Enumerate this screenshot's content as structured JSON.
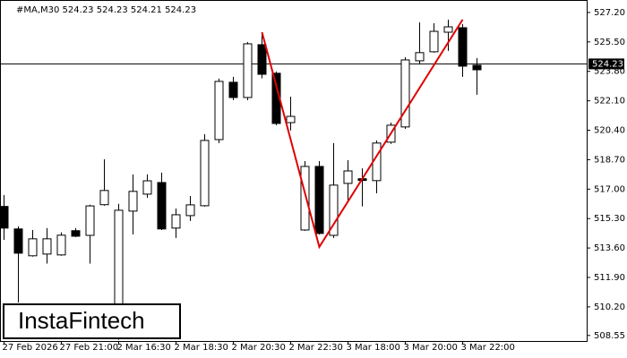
{
  "chart_data": {
    "type": "candlestick",
    "title": "#MA,M30  524.23 524.23 524.21 524.23",
    "categories": [
      "27 Feb 2026",
      null,
      null,
      null,
      "27 Feb 21:00",
      null,
      null,
      null,
      "2 Mar 16:30",
      null,
      null,
      null,
      "2 Mar 18:30",
      null,
      null,
      null,
      "2 Mar 20:30",
      null,
      null,
      null,
      "2 Mar 22:30",
      null,
      null,
      null,
      "3 Mar 18:00",
      null,
      null,
      null,
      "3 Mar 20:00",
      null,
      null,
      null,
      "3 Mar 22:00",
      null
    ],
    "open": [
      516.0,
      514.7,
      513.15,
      513.25,
      513.2,
      514.6,
      514.33,
      516.1,
      508.5,
      515.73,
      516.71,
      517.38,
      514.75,
      515.47,
      516.04,
      519.86,
      523.17,
      522.29,
      525.34,
      523.69,
      520.84,
      514.64,
      518.31,
      514.33,
      517.33,
      517.6,
      517.49,
      519.71,
      520.59,
      524.41,
      524.93,
      526.06,
      526.32,
      524.15
    ],
    "high": [
      516.66,
      514.85,
      514.64,
      514.75,
      514.5,
      514.75,
      516.1,
      518.72,
      516.15,
      517.85,
      517.85,
      517.95,
      515.88,
      516.6,
      520.17,
      523.38,
      523.48,
      525.49,
      526.0,
      523.79,
      522.34,
      518.62,
      518.62,
      519.66,
      518.67,
      518.2,
      519.81,
      520.84,
      524.62,
      526.63,
      526.58,
      526.79,
      526.53,
      524.57
    ],
    "low": [
      514.07,
      510.45,
      513.1,
      512.7,
      513.15,
      514.23,
      512.7,
      516.04,
      508.3,
      514.38,
      516.5,
      514.64,
      514.18,
      515.16,
      515.99,
      519.66,
      522.14,
      522.14,
      523.4,
      520.69,
      520.38,
      514.59,
      514.38,
      514.18,
      516.35,
      516.0,
      516.76,
      519.61,
      520.48,
      524.2,
      524.88,
      524.98,
      523.48,
      522.45
    ],
    "close": [
      514.75,
      513.3,
      514.13,
      514.13,
      514.34,
      514.28,
      516.03,
      516.92,
      515.78,
      516.87,
      517.48,
      514.7,
      515.52,
      516.09,
      519.81,
      523.22,
      522.29,
      525.39,
      523.63,
      520.79,
      521.2,
      518.31,
      514.44,
      517.23,
      518.05,
      517.5,
      519.66,
      520.69,
      524.46,
      524.88,
      526.11,
      526.37,
      524.1,
      523.89
    ],
    "up_color": "#ffffff",
    "down_color": "#000000",
    "pattern": {
      "color": "#e00000",
      "x": [
        18,
        22,
        32
      ],
      "values": [
        526.06,
        513.66,
        526.79
      ]
    },
    "price_line": {
      "value": 524.23,
      "label": "524.23"
    },
    "ylim": [
      508.23,
      527.92
    ],
    "yticks": [
      {
        "value": 527.2,
        "label": "527.20"
      },
      {
        "value": 525.5,
        "label": "525.50"
      },
      {
        "value": 523.8,
        "label": "523.80"
      },
      {
        "value": 522.1,
        "label": "522.10"
      },
      {
        "value": 520.4,
        "label": "520.40"
      },
      {
        "value": 518.7,
        "label": "518.70"
      },
      {
        "value": 517.0,
        "label": "517.00"
      },
      {
        "value": 515.3,
        "label": "515.30"
      },
      {
        "value": 513.6,
        "label": "513.60"
      },
      {
        "value": 511.9,
        "label": "511.90"
      },
      {
        "value": 510.2,
        "label": "510.20"
      },
      {
        "value": 508.55,
        "label": "508.55"
      }
    ],
    "logo": "InstaFintech"
  }
}
